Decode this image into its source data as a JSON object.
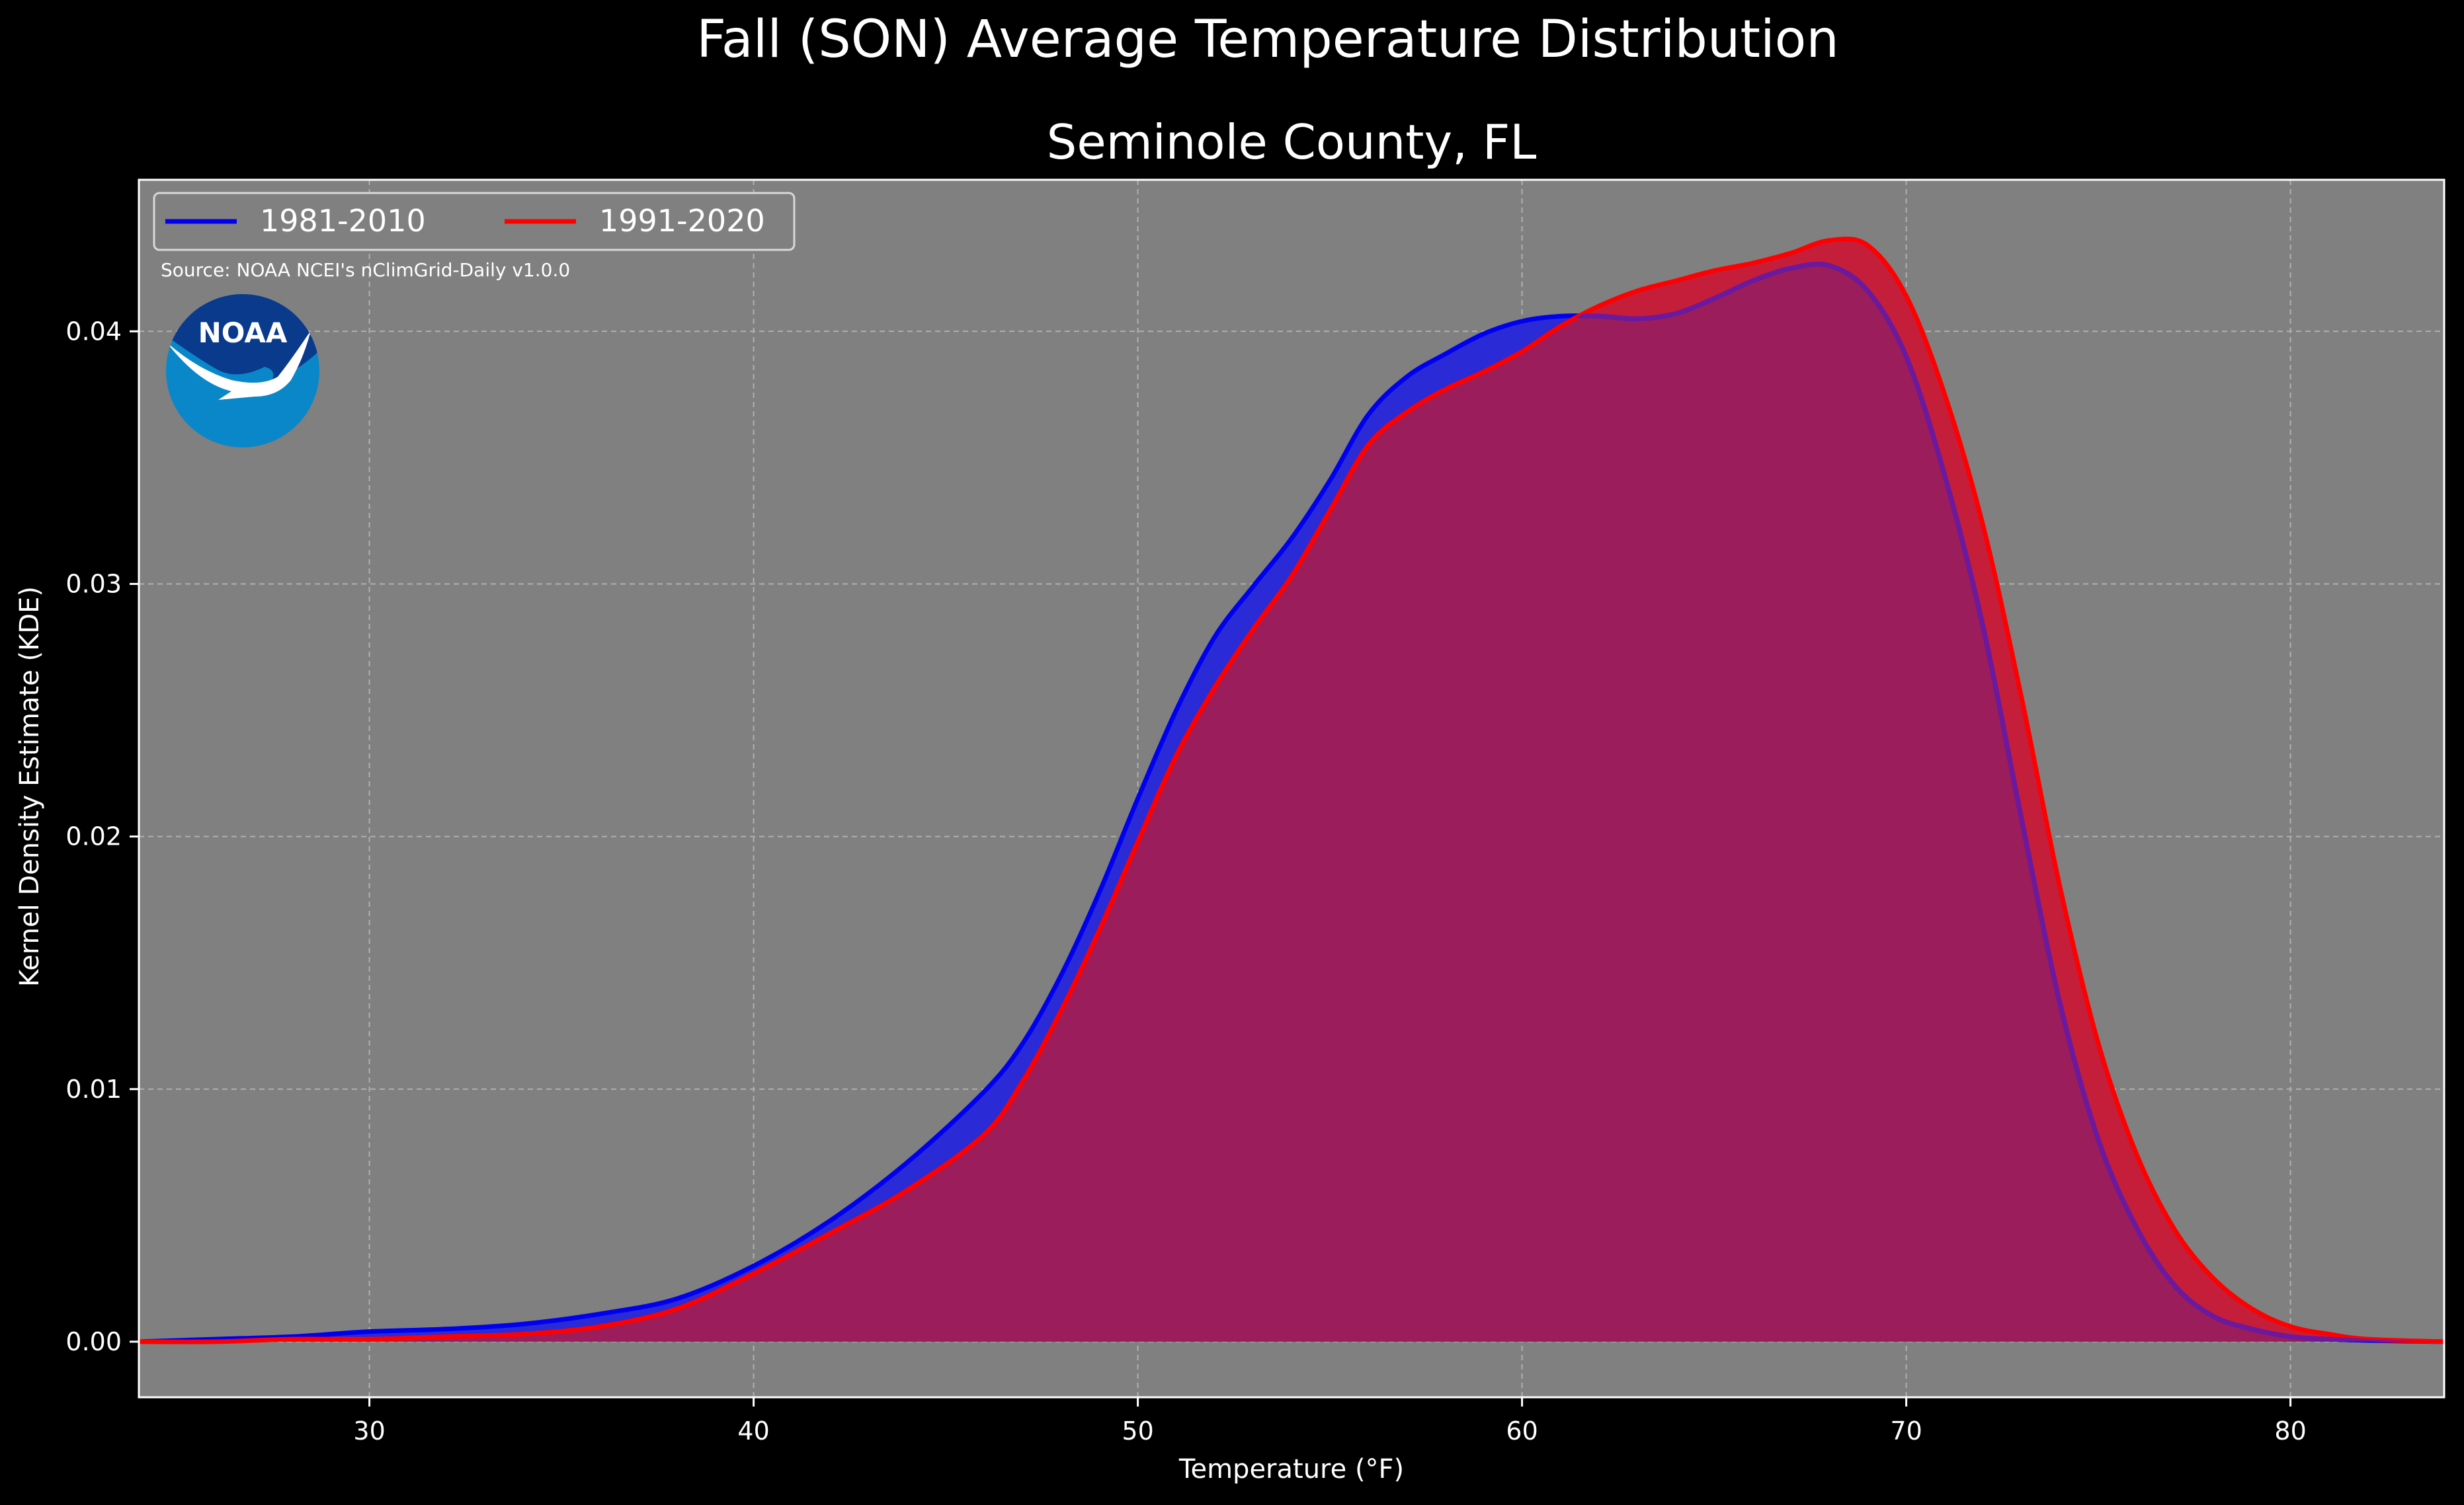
{
  "suptitle": "Fall (SON) Average Temperature Distribution",
  "source_note": "Source: NOAA NCEI's nClimGrid-Daily v1.0.0",
  "logo": {
    "text": "NOAA",
    "icon": "noaa-logo-icon",
    "colors": {
      "dark": "#0a3a8c",
      "light": "#0a87c9"
    }
  },
  "colors": {
    "background": "#000000",
    "plot_bg": "#808080",
    "series_1981": "#0000ee",
    "series_1991": "#ff0000",
    "fill_1981": "#2a2ad6",
    "fill_1991": "#c41e3a",
    "overlap": "#9b1d5b",
    "grid": "#b0b0b0"
  },
  "chart_data": {
    "type": "area",
    "title": "Seminole County, FL",
    "xlabel": "Temperature (°F)",
    "ylabel": "Kernel Density Estimate (KDE)",
    "xlim": [
      24,
      84
    ],
    "ylim": [
      -0.0022,
      0.046
    ],
    "xticks": [
      "30",
      "40",
      "50",
      "60",
      "70",
      "80"
    ],
    "yticks": [
      "0.00",
      "0.01",
      "0.02",
      "0.03",
      "0.04"
    ],
    "grid": true,
    "legend_position": "top-left",
    "series": [
      {
        "name": "1981-2010",
        "x": [
          24,
          26,
          28,
          30,
          32,
          34,
          36,
          38,
          40,
          42,
          44,
          46,
          47,
          48,
          49,
          50,
          51,
          52,
          53,
          54,
          55,
          56,
          57,
          58,
          59,
          60,
          61,
          62,
          63,
          64,
          65,
          66,
          67,
          68,
          69,
          70,
          71,
          72,
          73,
          74,
          75,
          76,
          77,
          78,
          79,
          80,
          81,
          82,
          84
        ],
        "y": [
          0,
          0.0001,
          0.0002,
          0.0004,
          0.0005,
          0.0007,
          0.0011,
          0.0017,
          0.003,
          0.0048,
          0.0071,
          0.0099,
          0.0118,
          0.0145,
          0.0178,
          0.0215,
          0.025,
          0.0279,
          0.0299,
          0.0318,
          0.0341,
          0.0367,
          0.0382,
          0.0391,
          0.0399,
          0.0404,
          0.0406,
          0.0406,
          0.0405,
          0.0407,
          0.0413,
          0.042,
          0.0425,
          0.0426,
          0.0416,
          0.039,
          0.0343,
          0.0283,
          0.0207,
          0.0134,
          0.008,
          0.0045,
          0.0022,
          0.001,
          0.0005,
          0.0002,
          0.0001,
          5e-05,
          0
        ]
      },
      {
        "name": "1991-2020",
        "x": [
          24,
          26,
          28,
          30,
          32,
          34,
          36,
          38,
          40,
          42,
          44,
          46,
          47,
          48,
          49,
          50,
          51,
          52,
          53,
          54,
          55,
          56,
          57,
          58,
          59,
          60,
          61,
          62,
          63,
          64,
          65,
          66,
          67,
          68,
          69,
          70,
          71,
          72,
          73,
          74,
          75,
          76,
          77,
          78,
          79,
          80,
          81,
          82,
          84
        ],
        "y": [
          0,
          0,
          0.0001,
          0.0001,
          0.0002,
          0.0003,
          0.0006,
          0.0013,
          0.0027,
          0.0043,
          0.006,
          0.0082,
          0.0103,
          0.0131,
          0.0163,
          0.0198,
          0.0232,
          0.0259,
          0.0282,
          0.0303,
          0.0329,
          0.0355,
          0.0368,
          0.0377,
          0.0384,
          0.0392,
          0.0402,
          0.041,
          0.0416,
          0.042,
          0.0424,
          0.0427,
          0.0431,
          0.0436,
          0.0434,
          0.0414,
          0.0375,
          0.0323,
          0.0255,
          0.018,
          0.0118,
          0.0074,
          0.0044,
          0.0025,
          0.0013,
          0.0006,
          0.0003,
          0.0001,
          0
        ]
      }
    ]
  }
}
